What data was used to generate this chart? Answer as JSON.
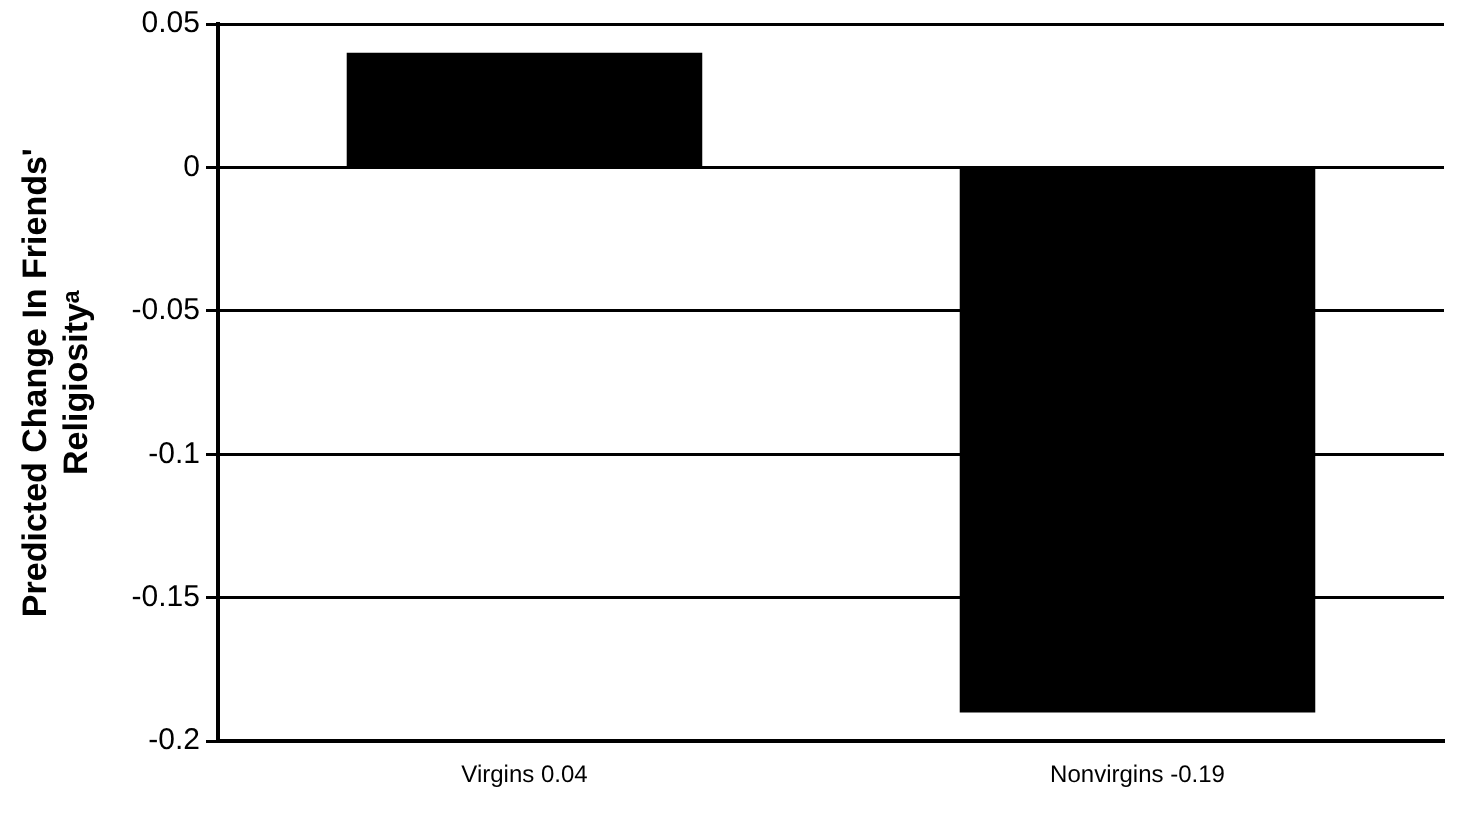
{
  "chart_data": {
    "type": "bar",
    "ylabel": "Predicted Change In Friends'\nReligiosityᵃ",
    "categories": [
      "Virgins 0.04",
      "Nonvirgins -0.19"
    ],
    "values": [
      0.04,
      -0.19
    ],
    "color": "#000000",
    "ylim": [
      -0.2,
      0.05
    ],
    "yticks": [
      0.05,
      0,
      -0.05,
      -0.1,
      -0.15,
      -0.2
    ],
    "grid": "y",
    "legend": false
  }
}
